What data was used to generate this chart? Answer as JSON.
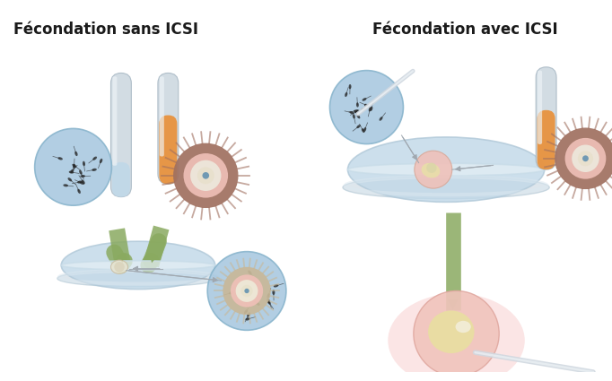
{
  "title_left": "Fécondation sans ICSI",
  "title_right": "Fécondation avec ICSI",
  "title_fontsize": 12,
  "title_fontweight": "bold",
  "bg_color": "#ffffff",
  "green_color": "#8aaa60",
  "sperm_blue": "#a8c8e0",
  "egg_orange": "#e8903a",
  "egg_brown": "#a07060",
  "egg_pink": "#f0c0b8",
  "egg_cream": "#f0ead0",
  "egg_white_inner": "#f8f5e8",
  "tube_gray": "#ccd8e0",
  "tube_highlight": "#eef4f8",
  "dish_blue": "#c0d8e8",
  "dish_rim": "#d8e8f0",
  "dish_gray_rim": "#c8d0d8",
  "pink_glow": "#f8d0d0",
  "needle_color": "#d0d8e0",
  "arrow_gray": "#a0a8b0",
  "nucleus_blue": "#6090b0"
}
